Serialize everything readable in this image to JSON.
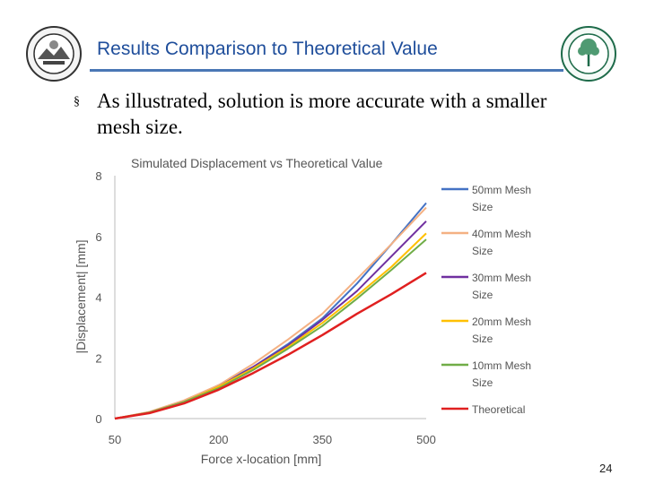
{
  "slide": {
    "title": "Results Comparison to Theoretical Value",
    "bullet_marker": "§",
    "bullet_text": "As illustrated, solution is more accurate with a smaller mesh size.",
    "page_number": "24",
    "colors": {
      "title": "#1f4e9b",
      "rule": "#4a77b5"
    }
  },
  "logos": {
    "left": "university-seal-icon",
    "right": "college-seal-icon"
  },
  "chart_data": {
    "type": "line",
    "title": "Simulated Displacement vs Theoretical Value",
    "xlabel": "Force x-location [mm]",
    "ylabel": "|Displacement| [mm]",
    "xlim": [
      50,
      500
    ],
    "ylim": [
      0,
      8
    ],
    "x_ticks": [
      50,
      200,
      350,
      500
    ],
    "y_ticks": [
      0,
      2,
      4,
      6,
      8
    ],
    "grid": false,
    "legend_position": "right",
    "x": [
      50,
      100,
      150,
      200,
      250,
      300,
      350,
      400,
      450,
      500
    ],
    "series": [
      {
        "name": "50mm Mesh Size",
        "color": "#4472c4",
        "values": [
          0,
          0.2,
          0.55,
          1.1,
          1.7,
          2.45,
          3.3,
          4.45,
          5.75,
          7.1
        ]
      },
      {
        "name": "40mm Mesh Size",
        "color": "#f4b183",
        "values": [
          0,
          0.22,
          0.6,
          1.1,
          1.8,
          2.6,
          3.45,
          4.6,
          5.75,
          6.95
        ]
      },
      {
        "name": "30mm Mesh Size",
        "color": "#7030a0",
        "values": [
          0,
          0.2,
          0.55,
          1.05,
          1.7,
          2.4,
          3.25,
          4.2,
          5.35,
          6.5
        ]
      },
      {
        "name": "20mm Mesh Size",
        "color": "#ffc000",
        "values": [
          0,
          0.2,
          0.55,
          1.05,
          1.65,
          2.35,
          3.15,
          4.05,
          5.0,
          6.1
        ]
      },
      {
        "name": "10mm Mesh Size",
        "color": "#70ad47",
        "values": [
          0,
          0.2,
          0.55,
          1.0,
          1.6,
          2.3,
          3.05,
          3.95,
          4.9,
          5.9
        ]
      },
      {
        "name": "Theoretical",
        "color": "#e02020",
        "values": [
          0,
          0.18,
          0.5,
          0.95,
          1.5,
          2.1,
          2.75,
          3.45,
          4.1,
          4.8
        ]
      }
    ]
  }
}
